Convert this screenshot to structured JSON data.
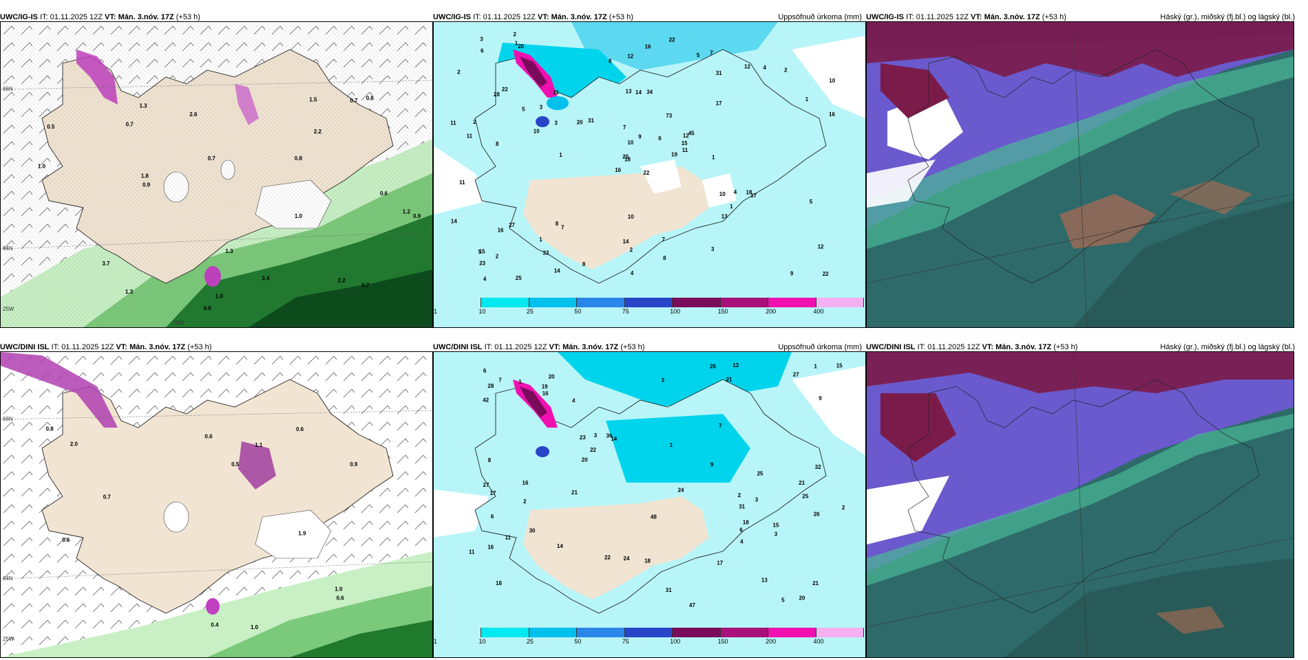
{
  "panels": [
    {
      "model": "UWC/IG-IS",
      "it": "IT: 01.11.2025 12Z",
      "vt": "VT: Mán. 3.nóv. 17Z",
      "lead": "(+53 h)",
      "right": ""
    },
    {
      "model": "UWC/IG-IS",
      "it": "IT: 01.11.2025 12Z",
      "vt": "VT: Mán. 3.nóv. 17Z",
      "lead": "(+53 h)",
      "right": "Uppsöfnuð úrkoma (mm)"
    },
    {
      "model": "UWC/IG-IS",
      "it": "IT: 01.11.2025 12Z",
      "vt": "VT: Mán. 3.nóv. 17Z",
      "lead": "(+53 h)",
      "right": "Háský (gr.), miðský (fj.bl.) og lágský (bl.)"
    },
    {
      "model": "UWC/DINI ISL",
      "it": "IT: 01.11.2025 12Z",
      "vt": "VT: Mán. 3.nóv. 17Z",
      "lead": "(+53 h)",
      "right": ""
    },
    {
      "model": "UWC/DINI ISL",
      "it": "IT: 01.11.2025 12Z",
      "vt": "VT: Mán. 3.nóv. 17Z",
      "lead": "(+53 h)",
      "right": "Uppsöfnuð úrkoma (mm)"
    },
    {
      "model": "UWC/DINI ISL",
      "it": "IT: 01.11.2025 12Z",
      "vt": "VT: Mán. 3.nóv. 17Z",
      "lead": "(+53 h)",
      "right": "Háský (gr.), miðský (fj.bl.) og lágský (bl.)"
    }
  ],
  "grid_labels": {
    "lat66": "66N",
    "lat64": "64N",
    "lon25": "25W",
    "lon20": "20W"
  },
  "colorbar": {
    "labels": [
      "1",
      "10",
      "25",
      "50",
      "75",
      "100",
      "150",
      "200",
      "400"
    ],
    "colors": [
      "#b8f5f8",
      "#00e8f0",
      "#00c0ec",
      "#2a86e8",
      "#2845c8",
      "#7a0a5a",
      "#a8107c",
      "#f010b0",
      "#f4b0f0"
    ]
  },
  "precip_top": [
    "22",
    "28",
    "18",
    "15",
    "12",
    "7",
    "7",
    "34",
    "31",
    "19",
    "20",
    "22",
    "8",
    "10",
    "16",
    "17",
    "25",
    "13",
    "73",
    "27",
    "31",
    "23",
    "33",
    "14",
    "45",
    "17",
    "22",
    "12",
    "11",
    "10",
    "16",
    "20",
    "14",
    "10",
    "11",
    "12",
    "8",
    "9",
    "12",
    "18",
    "22",
    "20",
    "10",
    "13",
    "14",
    "11",
    "15",
    "4",
    "2",
    "11",
    "16",
    "1",
    "2",
    "1",
    "3",
    "1",
    "1",
    "3",
    "7",
    "2",
    "16",
    "1",
    "2",
    "3",
    "4",
    "2",
    "5",
    "8",
    "9",
    "14",
    "10",
    "8",
    "4",
    "3",
    "5",
    "6",
    "5",
    "11",
    "7",
    "8",
    "6",
    "2",
    "1",
    "5",
    "4"
  ],
  "precip_bottom": [
    "31",
    "25",
    "18",
    "20",
    "14",
    "13",
    "16",
    "21",
    "23",
    "47",
    "42",
    "27",
    "28",
    "21",
    "22",
    "32",
    "48",
    "24",
    "36",
    "30",
    "15",
    "27",
    "20",
    "26",
    "26",
    "19",
    "18",
    "17",
    "16",
    "25",
    "31",
    "17",
    "22",
    "21",
    "21",
    "3",
    "6",
    "16",
    "18",
    "11",
    "9",
    "13",
    "20",
    "24",
    "15",
    "14",
    "11",
    "7",
    "9",
    "8",
    "2",
    "3",
    "1",
    "2",
    "4",
    "5",
    "7",
    "6",
    "2",
    "1",
    "3",
    "4",
    "1",
    "6",
    "2"
  ],
  "synop_left_top": [
    "0.5",
    "0.7",
    "0.8",
    "1.0",
    "0.7",
    "0.6",
    "1.0",
    "0.9",
    "0.8",
    "0.9",
    "1.2",
    "1.3",
    "2.2",
    "3.7",
    "1.0",
    "1.3",
    "1.8",
    "2.6",
    "0.7",
    "3.4",
    "2.2",
    "0.6",
    "0.7",
    "1.3",
    "1.5"
  ],
  "synop_left_bottom": [
    "0.5",
    "0.6",
    "0.8",
    "0.9",
    "0.4",
    "0.6",
    "1.0",
    "0.6",
    "0.7",
    "0.6",
    "1.0",
    "1.1",
    "1.9",
    "2.0"
  ]
}
